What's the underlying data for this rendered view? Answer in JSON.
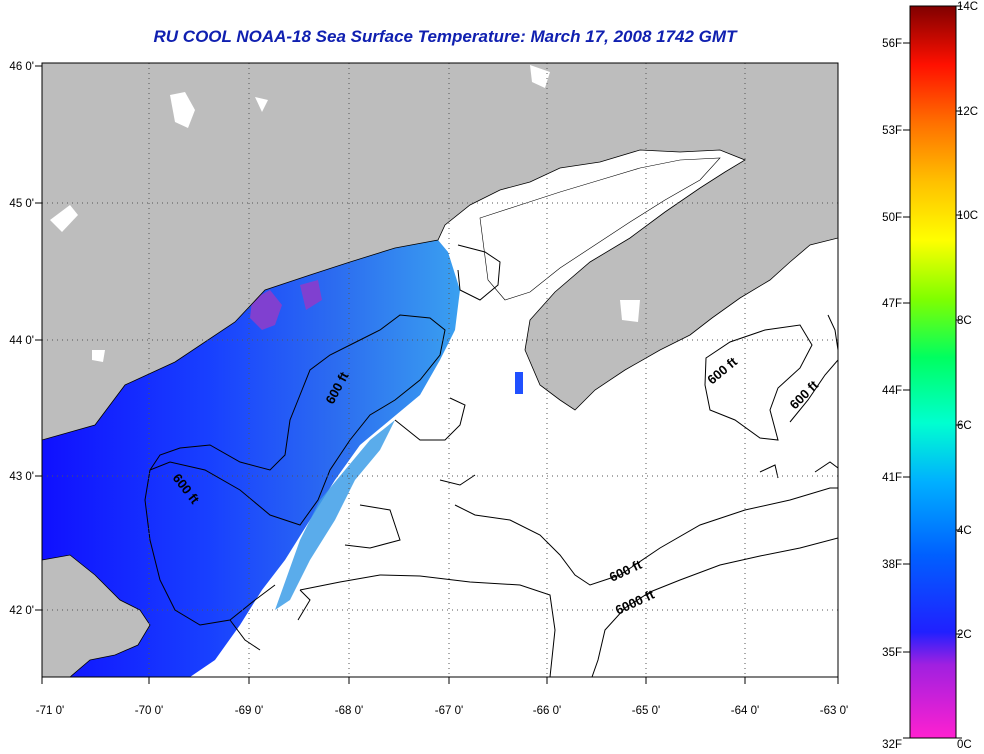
{
  "title": "RU COOL  NOAA-18  Sea Surface Temperature:  March 17, 2008 1742 GMT",
  "x_axis": {
    "ticks": [
      "-71 0'",
      "-70 0'",
      "-69 0'",
      "-68 0'",
      "-67 0'",
      "-66 0'",
      "-65 0'",
      "-64 0'",
      "-63 0'"
    ]
  },
  "y_axis": {
    "ticks": [
      "46 0'",
      "45 0'",
      "44 0'",
      "43 0'",
      "42 0'"
    ]
  },
  "contour_labels": [
    {
      "text": "600 ft"
    },
    {
      "text": "600 ft"
    },
    {
      "text": "600 ft"
    },
    {
      "text": "600 ft"
    },
    {
      "text": "600 ft"
    },
    {
      "text": "6000 ft"
    }
  ],
  "colorbar": {
    "fahrenheit_labels": [
      "56F",
      "53F",
      "50F",
      "47F",
      "44F",
      "41F",
      "38F",
      "35F",
      "32F"
    ],
    "celsius_labels": [
      "14C",
      "12C",
      "10C",
      "8C",
      "6C",
      "4C",
      "2C",
      "0C"
    ],
    "scale": [
      "#ff20d0",
      "#a020e0",
      "#2020ff",
      "#0060ff",
      "#00c0ff",
      "#00ffd0",
      "#00ff60",
      "#80ff00",
      "#ffff00",
      "#ffc000",
      "#ff8000",
      "#ff2000",
      "#c00000",
      "#800000"
    ]
  },
  "colors": {
    "land": "#bdbdbd",
    "ocean_no_data": "#ffffff",
    "title": "#1020b0",
    "grid": "#555555"
  }
}
